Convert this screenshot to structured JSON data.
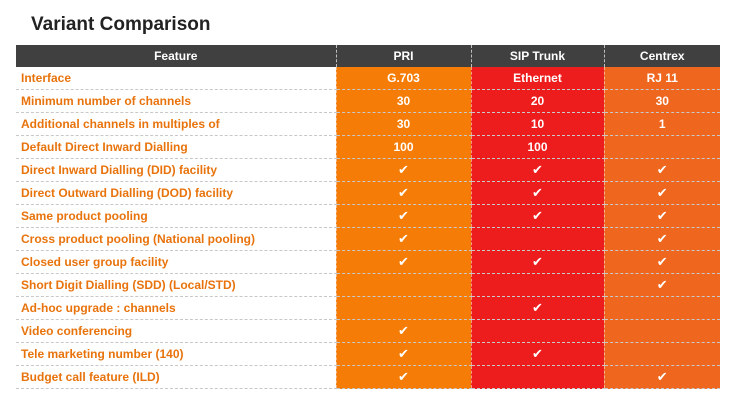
{
  "title": "Variant Comparison",
  "headers": [
    "Feature",
    "PRI",
    "SIP Trunk",
    "Centrex"
  ],
  "check_symbol": "✔",
  "colors": {
    "pri": "#f57d07",
    "sip": "#ee1d1d",
    "centrex": "#ef661f",
    "feature_text": "#e8730c",
    "header_bg": "#404040"
  },
  "rows": [
    {
      "feature": "Interface",
      "pri": "G.703",
      "sip": "Ethernet",
      "centrex": "RJ 11"
    },
    {
      "feature": "Minimum number of channels",
      "pri": "30",
      "sip": "20",
      "centrex": "30"
    },
    {
      "feature": "Additional channels in multiples of",
      "pri": "30",
      "sip": "10",
      "centrex": "1"
    },
    {
      "feature": "Default Direct Inward Dialling",
      "pri": "100",
      "sip": "100",
      "centrex": ""
    },
    {
      "feature": "Direct Inward Dialling (DID) facility",
      "pri": true,
      "sip": true,
      "centrex": true
    },
    {
      "feature": "Direct Outward Dialling (DOD) facility",
      "pri": true,
      "sip": true,
      "centrex": true
    },
    {
      "feature": "Same product pooling",
      "pri": true,
      "sip": true,
      "centrex": true
    },
    {
      "feature": "Cross product pooling (National pooling)",
      "pri": true,
      "sip": false,
      "centrex": true
    },
    {
      "feature": "Closed user group facility",
      "pri": true,
      "sip": true,
      "centrex": true
    },
    {
      "feature": "Short Digit Dialling (SDD) (Local/STD)",
      "pri": false,
      "sip": false,
      "centrex": true
    },
    {
      "feature": "Ad-hoc upgrade : channels",
      "pri": false,
      "sip": true,
      "centrex": false
    },
    {
      "feature": "Video conferencing",
      "pri": true,
      "sip": false,
      "centrex": false
    },
    {
      "feature": "Tele marketing number (140)",
      "pri": true,
      "sip": true,
      "centrex": false
    },
    {
      "feature": "Budget call feature (ILD)",
      "pri": true,
      "sip": false,
      "centrex": true
    }
  ]
}
